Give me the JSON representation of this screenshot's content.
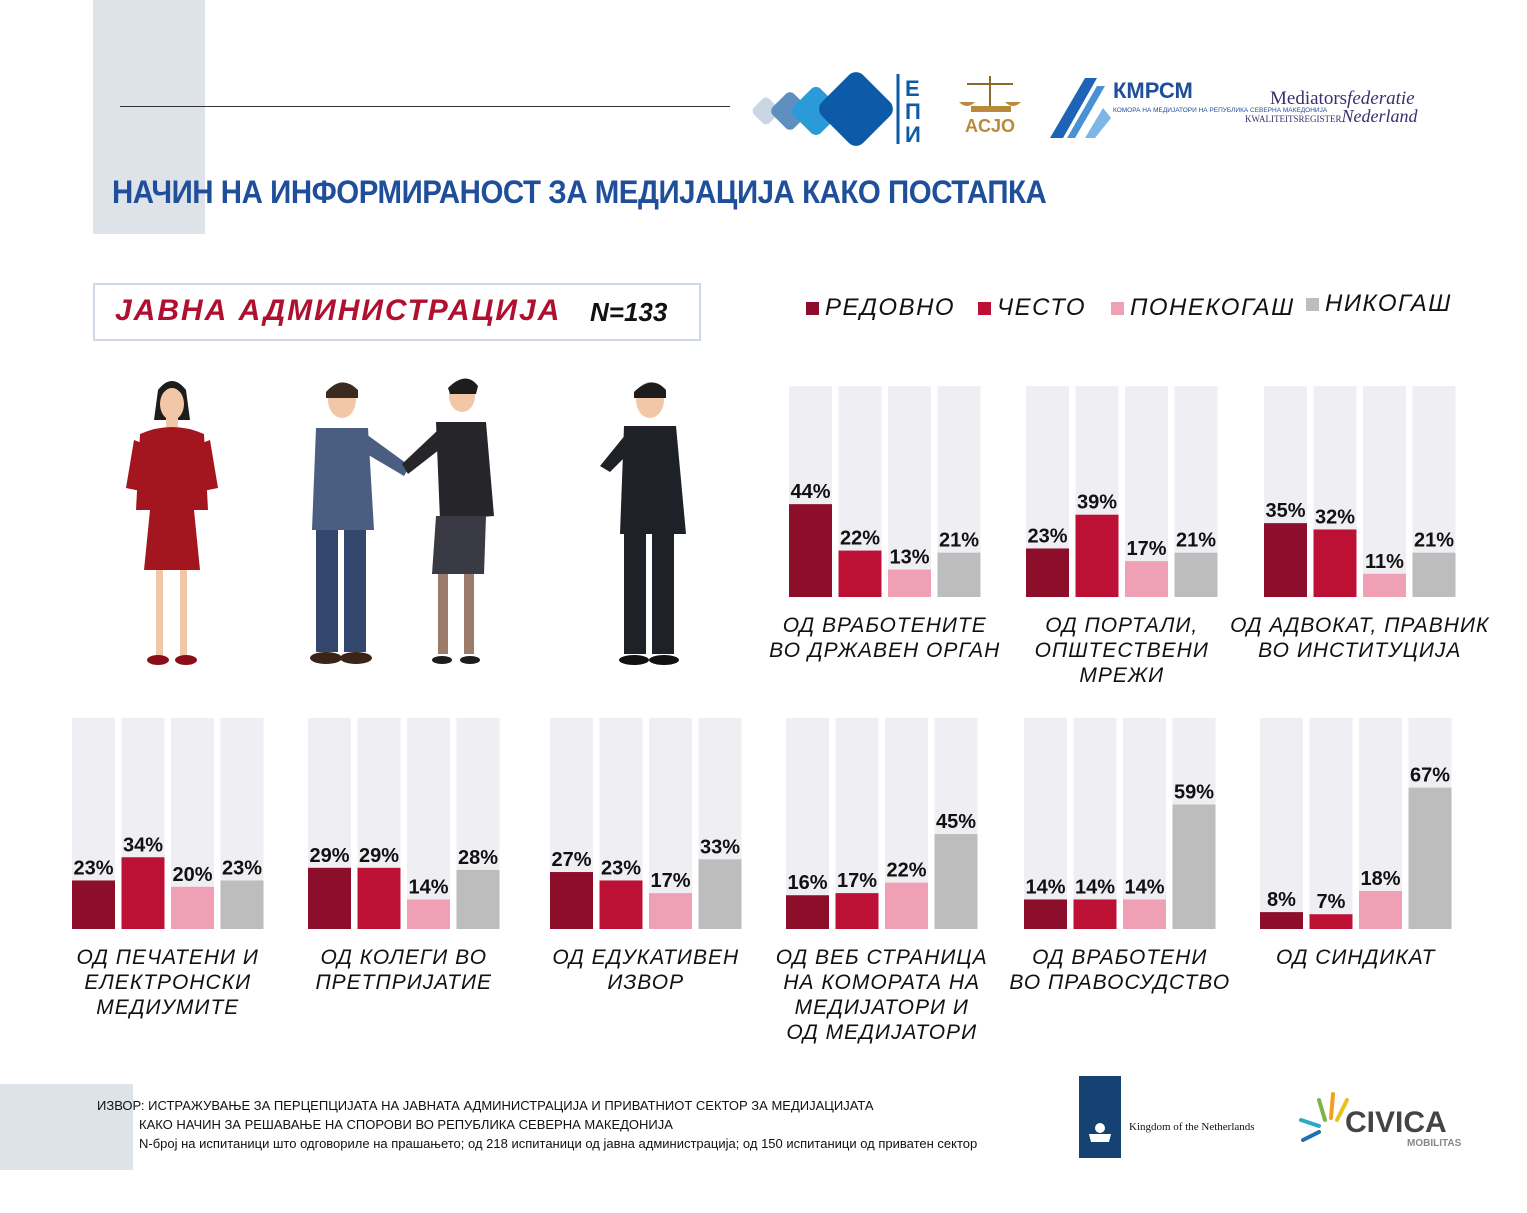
{
  "header": {
    "title": "НАЧИН НА ИНФОРМИРАНОСТ ЗА МЕДИЈАЦИЈА КАКО ПОСТАПКА"
  },
  "sector": {
    "name": "ЈАВНА АДМИНИСТРАЦИЈА",
    "n": "N=133"
  },
  "logos": {
    "epi": "ЕПИ",
    "acjo": "ACJO",
    "kmrsm": "КМРСМ",
    "kmrsm_sub": "КОМОРА НА МЕДИЈАТОРИ НА РЕПУБЛИКА СЕВЕРНА МАКЕДОНИЈА",
    "mfn_line1a": "Mediators",
    "mfn_line1b": "federatie",
    "mfn_line2a": "KWALITEITSREGISTER",
    "mfn_line2b": "Nederland",
    "netherlands": "Kingdom of the Netherlands",
    "civica": "CIVICA",
    "civica_sub": "MOBILITAS"
  },
  "colors": {
    "redovno": "#8c0e2a",
    "chesto": "#bc1134",
    "ponekogash": "#f0a0b4",
    "nikogash": "#bdbdbd",
    "track": "#efeff3",
    "title": "#1f4e9a"
  },
  "chart_data": {
    "type": "bar",
    "legend": [
      "РЕДОВНО",
      "ЧЕСТО",
      "ПОНЕКОГАШ",
      "НИКОГАШ"
    ],
    "ylim": [
      0,
      100
    ],
    "unit": "%",
    "groups": [
      {
        "label": "ОД ВРАБОТЕНИТЕ\nВО ДРЖАВЕН ОРГАН",
        "values": [
          44,
          22,
          13,
          21
        ]
      },
      {
        "label": "ОД ПОРТАЛИ,\nОПШТЕСТВЕНИ МРЕЖИ",
        "values": [
          23,
          39,
          17,
          21
        ]
      },
      {
        "label": "ОД АДВОКАТ, ПРАВНИК\nВО ИНСТИТУЦИЈА",
        "values": [
          35,
          32,
          11,
          21
        ]
      },
      {
        "label": "ОД ПЕЧАТЕНИ И\nЕЛЕКТРОНСКИ МЕДИУМИТЕ",
        "values": [
          23,
          34,
          20,
          23
        ]
      },
      {
        "label": "ОД КОЛЕГИ ВО\nПРЕТПРИЈАТИЕ",
        "values": [
          29,
          29,
          14,
          28
        ]
      },
      {
        "label": "ОД ЕДУКАТИВЕН\nИЗВОР",
        "values": [
          27,
          23,
          17,
          33
        ]
      },
      {
        "label": "ОД ВЕБ СТРАНИЦА\nНА КОМОРАТА НА\nМЕДИЈАТОРИ И\nОД МЕДИЈАТОРИ",
        "values": [
          16,
          17,
          22,
          45
        ]
      },
      {
        "label": "ОД ВРАБОТЕНИ\nВО ПРАВОСУДСТВО",
        "values": [
          14,
          14,
          14,
          59
        ]
      },
      {
        "label": "ОД СИНДИКАТ",
        "values": [
          8,
          7,
          18,
          67
        ]
      }
    ]
  },
  "source": {
    "line1": "ИЗВОР: ИСТРАЖУВАЊЕ ЗА ПЕРЦЕПЦИЈАТА НА ЈАВНАТА АДМИНИСТРАЦИЈА И ПРИВАТНИОТ СЕКТОР ЗА МЕДИЈАЦИЈАТА",
    "line2": "КАКО НАЧИН ЗА РЕШАВАЊЕ НА СПОРОВИ ВО РЕПУБЛИКА СЕВЕРНА МАКЕДОНИЈА",
    "line3": "N-број на испитаници што одговориле на прашањето; од 218 испитаници од јавна администрација; од 150 испитаници од приватен сектор"
  }
}
